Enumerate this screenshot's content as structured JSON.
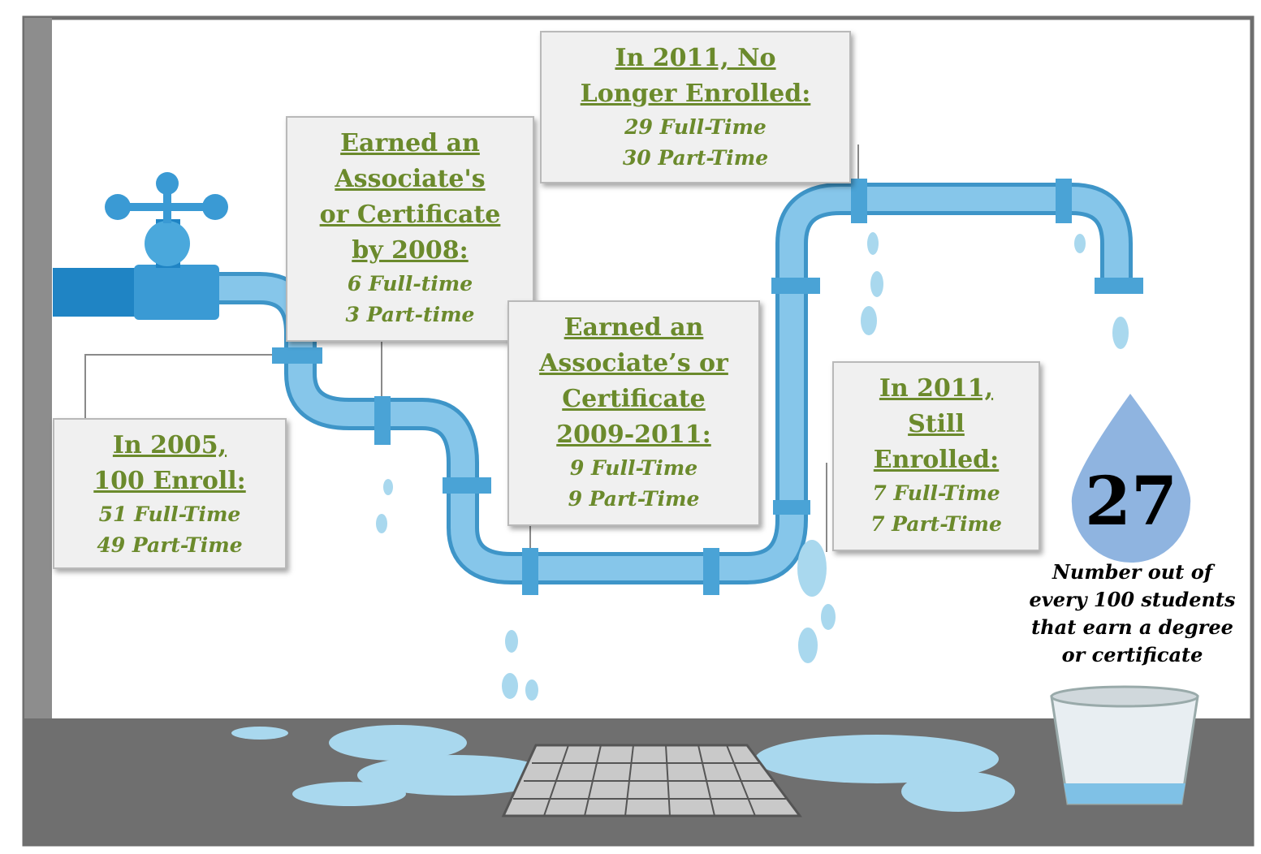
{
  "boxes": [
    {
      "heading": [
        "In 2005,",
        "100 Enroll:"
      ],
      "lines": [
        "51 Full-Time",
        "49 Part-Time"
      ]
    },
    {
      "heading": [
        "Earned an",
        "Associate's",
        "or Certificate",
        "by 2008:"
      ],
      "lines": [
        "6 Full-time",
        "3 Part-time"
      ]
    },
    {
      "heading": [
        "Earned an",
        "Associate’s or",
        "Certificate",
        "2009-2011:"
      ],
      "lines": [
        "9 Full-Time",
        "9 Part-Time"
      ]
    },
    {
      "heading": [
        "In 2011, No",
        "Longer Enrolled:"
      ],
      "lines": [
        "29 Full-Time",
        "30 Part-Time"
      ]
    },
    {
      "heading": [
        "In 2011,",
        "Still",
        "Enrolled:"
      ],
      "lines": [
        "7 Full-Time",
        "7 Part-Time"
      ]
    }
  ],
  "drop": {
    "number": "27",
    "caption": "Number out of every 100 students that earn a degree or certificate"
  }
}
